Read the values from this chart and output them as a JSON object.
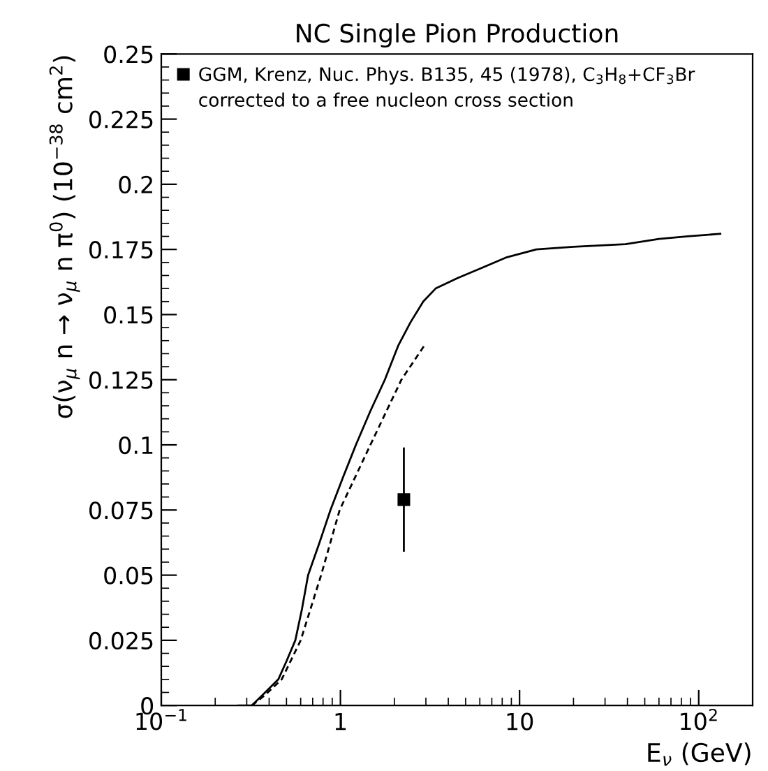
{
  "chart_data": {
    "type": "line",
    "title": "NC Single Pion Production",
    "xlabel": "E$_{ν}$ (GeV)",
    "ylabel": "σ(ν$_{μ}$ n → ν$_{μ}$ n π$^{0}$) (10$^{−38}$ cm$^{2}$)",
    "log": "x",
    "xlim": [
      0.1,
      200
    ],
    "xticks": [
      {
        "value": 0.1,
        "label": "10$^{−1}$"
      },
      1,
      10,
      {
        "value": 100,
        "label": "10$^{2}$"
      }
    ],
    "ylim": [
      0,
      0.25
    ],
    "yticks": [
      0,
      0.025,
      0.05,
      0.075,
      0.1,
      0.125,
      0.15,
      0.175,
      0.2,
      0.225,
      0.25
    ],
    "grid": false,
    "legend": "top left",
    "annotations": [
      "corrected to a free nucleon cross section"
    ],
    "series": [
      {
        "color": "#000000",
        "line_style": "solid",
        "x": [
          0.27,
          0.32,
          0.38,
          0.45,
          0.5,
          0.56,
          0.61,
          0.66,
          0.76,
          0.88,
          1.04,
          1.22,
          1.47,
          1.77,
          2.1,
          2.46,
          2.9,
          3.4,
          4.5,
          6.2,
          8.5,
          12.4,
          20,
          39,
          60,
          87,
          132
        ],
        "values": [
          0,
          0,
          0.005,
          0.01,
          0.017,
          0.025,
          0.037,
          0.05,
          0.062,
          0.075,
          0.088,
          0.1,
          0.113,
          0.125,
          0.138,
          0.147,
          0.155,
          0.16,
          0.164,
          0.168,
          0.172,
          0.175,
          0.176,
          0.177,
          0.179,
          0.18,
          0.181
        ]
      },
      {
        "color": "#000000",
        "line_style": "dashed",
        "x": [
          0.32,
          0.38,
          0.47,
          0.6,
          0.78,
          0.99,
          1.47,
          2.19,
          3.0
        ],
        "values": [
          0,
          0.004,
          0.01,
          0.025,
          0.05,
          0.075,
          0.1,
          0.125,
          0.139
        ]
      },
      {
        "type": "scatter",
        "name": "GGM, Krenz, Nuc. Phys. B135, 45 (1978), C$_{3}$H$_{8}$+CF$_{3}$Br",
        "color": "#000000",
        "marker": "square",
        "x": [
          2.26
        ],
        "values": [
          0.079
        ],
        "errors": [
          [
            0.059,
            0.099
          ]
        ]
      }
    ]
  }
}
